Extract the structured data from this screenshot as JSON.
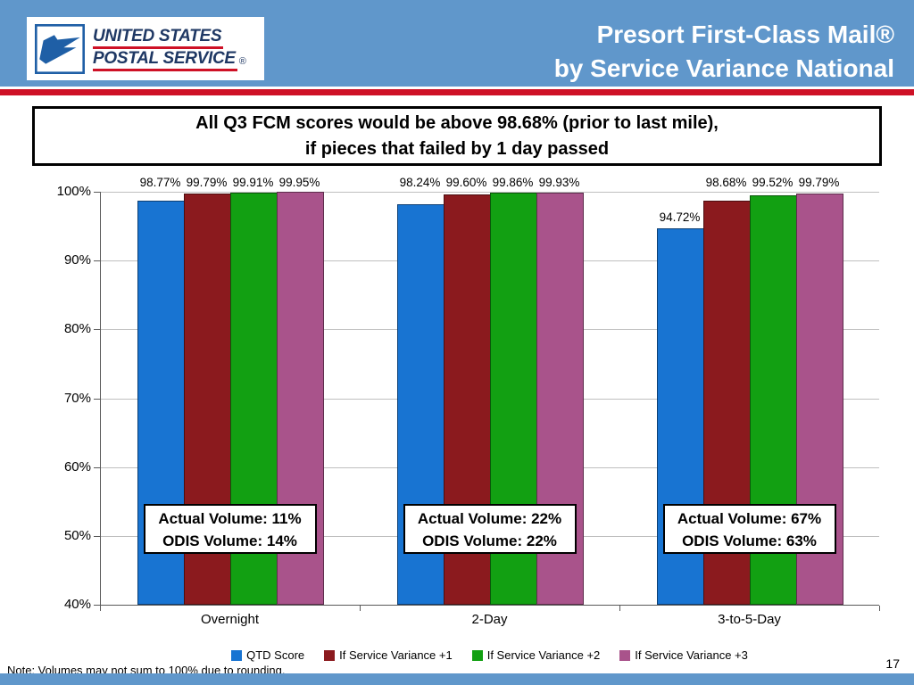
{
  "header": {
    "logo": {
      "line1": "UNITED STATES",
      "line2": "POSTAL SERVICE",
      "registered": "®"
    },
    "title_line1": "Presort First-Class Mail®",
    "title_line2": "by Service Variance National"
  },
  "headline": {
    "line1": "All Q3 FCM scores would be above 98.68% (prior to last mile),",
    "line2": "if pieces that failed by 1 day passed"
  },
  "chart_data": {
    "type": "bar",
    "title": "Presort First-Class Mail by Service Variance National",
    "categories": [
      "Overnight",
      "2-Day",
      "3-to-5-Day"
    ],
    "series": [
      {
        "name": "QTD Score",
        "color": "#1874D2",
        "values": [
          98.77,
          98.24,
          94.72
        ]
      },
      {
        "name": "If Service Variance +1",
        "color": "#8B1A1E",
        "values": [
          99.79,
          99.6,
          98.68
        ]
      },
      {
        "name": "If Service Variance +2",
        "color": "#12A012",
        "values": [
          99.91,
          99.86,
          99.52
        ]
      },
      {
        "name": "If Service Variance +3",
        "color": "#A9538B",
        "values": [
          99.95,
          99.93,
          99.79
        ]
      }
    ],
    "bar_labels": [
      [
        "98.77%",
        "99.79%",
        "99.91%",
        "99.95%"
      ],
      [
        "98.24%",
        "99.60%",
        "99.86%",
        "99.93%"
      ],
      [
        "94.72%",
        "98.68%",
        "99.52%",
        "99.79%"
      ]
    ],
    "ylim": [
      40,
      100
    ],
    "yticks": [
      {
        "value": 100,
        "label": "100%"
      },
      {
        "value": 90,
        "label": "90%"
      },
      {
        "value": 80,
        "label": "80%"
      },
      {
        "value": 70,
        "label": "70%"
      },
      {
        "value": 60,
        "label": "60%"
      },
      {
        "value": 50,
        "label": "50%"
      },
      {
        "value": 40,
        "label": "40%"
      }
    ],
    "grid": true,
    "legend_position": "bottom",
    "annotations": [
      {
        "line1": "Actual Volume: 11%",
        "line2": "ODIS Volume: 14%"
      },
      {
        "line1": "Actual Volume: 22%",
        "line2": "ODIS Volume: 22%"
      },
      {
        "line1": "Actual Volume: 67%",
        "line2": "ODIS Volume: 63%"
      }
    ]
  },
  "footer": {
    "note": "Note: Volumes may not sum to 100% due to rounding.",
    "page_number": "17"
  },
  "theme": {
    "banner_blue": "#6097CB",
    "rule_red": "#CE1126",
    "logo_navy": "#1F3864",
    "gridline_gray": "#BFBFBF"
  }
}
